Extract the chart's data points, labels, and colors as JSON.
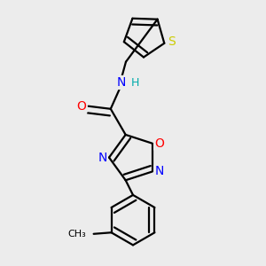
{
  "bg_color": "#ececec",
  "bond_color": "#000000",
  "bond_width": 1.6,
  "atom_colors": {
    "N": "#0000ff",
    "O": "#ff0000",
    "S": "#cccc00",
    "H": "#00aaaa"
  },
  "font_size_atom": 10,
  "font_size_h": 9
}
